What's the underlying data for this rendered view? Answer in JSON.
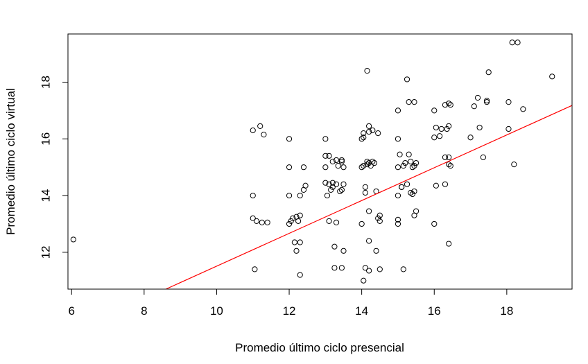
{
  "chart_data": {
    "type": "scatter",
    "title": "",
    "xlabel": "Promedio último ciclo presencial",
    "ylabel": "Promedio último ciclo virtual",
    "xlim": [
      5.9,
      19.8
    ],
    "ylim": [
      10.7,
      19.7
    ],
    "xticks": [
      6,
      8,
      10,
      12,
      14,
      16,
      18
    ],
    "xtick_labels": [
      "6",
      "8",
      "10",
      "12",
      "14",
      "16",
      "18"
    ],
    "yticks": [
      12,
      14,
      16,
      18
    ],
    "ytick_labels": [
      "12",
      "14",
      "16",
      "18"
    ],
    "grid": false,
    "point_color": "#000000",
    "line_color": "#ff0000",
    "regression_line": {
      "x": [
        8.6,
        19.8
      ],
      "y": [
        10.7,
        17.18
      ]
    },
    "points": [
      [
        6.05,
        12.45
      ],
      [
        11.0,
        16.3
      ],
      [
        11.0,
        14.0
      ],
      [
        11.0,
        13.2
      ],
      [
        11.05,
        11.4
      ],
      [
        11.1,
        13.1
      ],
      [
        11.2,
        16.45
      ],
      [
        11.25,
        13.05
      ],
      [
        11.3,
        16.15
      ],
      [
        11.4,
        13.05
      ],
      [
        12.0,
        16.0
      ],
      [
        12.0,
        15.0
      ],
      [
        12.0,
        14.0
      ],
      [
        12.0,
        13.0
      ],
      [
        12.05,
        13.1
      ],
      [
        12.1,
        13.2
      ],
      [
        12.15,
        12.35
      ],
      [
        12.2,
        13.25
      ],
      [
        12.2,
        12.05
      ],
      [
        12.25,
        13.1
      ],
      [
        12.3,
        14.0
      ],
      [
        12.3,
        13.3
      ],
      [
        12.3,
        12.35
      ],
      [
        12.3,
        11.2
      ],
      [
        12.4,
        15.0
      ],
      [
        12.4,
        14.2
      ],
      [
        12.45,
        14.35
      ],
      [
        13.0,
        16.0
      ],
      [
        13.0,
        15.4
      ],
      [
        13.0,
        15.0
      ],
      [
        13.0,
        14.45
      ],
      [
        13.05,
        14.0
      ],
      [
        13.1,
        15.4
      ],
      [
        13.1,
        14.4
      ],
      [
        13.1,
        13.1
      ],
      [
        13.15,
        14.2
      ],
      [
        13.2,
        15.2
      ],
      [
        13.2,
        14.45
      ],
      [
        13.2,
        14.3
      ],
      [
        13.25,
        12.2
      ],
      [
        13.25,
        11.45
      ],
      [
        13.3,
        15.25
      ],
      [
        13.3,
        14.4
      ],
      [
        13.3,
        13.05
      ],
      [
        13.35,
        15.05
      ],
      [
        13.4,
        14.15
      ],
      [
        13.45,
        15.25
      ],
      [
        13.45,
        15.2
      ],
      [
        13.45,
        14.2
      ],
      [
        13.45,
        11.45
      ],
      [
        13.5,
        15.0
      ],
      [
        13.5,
        14.4
      ],
      [
        13.5,
        12.05
      ],
      [
        14.0,
        16.0
      ],
      [
        14.0,
        15.0
      ],
      [
        14.0,
        13.0
      ],
      [
        14.05,
        16.2
      ],
      [
        14.05,
        16.05
      ],
      [
        14.05,
        15.05
      ],
      [
        14.05,
        11.0
      ],
      [
        14.1,
        11.45
      ],
      [
        14.1,
        14.3
      ],
      [
        14.1,
        14.1
      ],
      [
        14.15,
        18.4
      ],
      [
        14.15,
        15.2
      ],
      [
        14.15,
        15.1
      ],
      [
        14.2,
        16.45
      ],
      [
        14.2,
        16.25
      ],
      [
        14.2,
        15.15
      ],
      [
        14.2,
        13.45
      ],
      [
        14.2,
        12.4
      ],
      [
        14.2,
        11.35
      ],
      [
        14.25,
        15.05
      ],
      [
        14.3,
        16.3
      ],
      [
        14.3,
        15.2
      ],
      [
        14.35,
        15.15
      ],
      [
        14.4,
        14.15
      ],
      [
        14.4,
        12.05
      ],
      [
        14.45,
        16.2
      ],
      [
        14.45,
        13.2
      ],
      [
        14.5,
        13.3
      ],
      [
        14.5,
        13.1
      ],
      [
        14.5,
        11.4
      ],
      [
        15.0,
        17.0
      ],
      [
        15.0,
        16.0
      ],
      [
        15.0,
        15.0
      ],
      [
        15.0,
        14.0
      ],
      [
        15.0,
        13.15
      ],
      [
        15.0,
        13.0
      ],
      [
        15.05,
        15.45
      ],
      [
        15.1,
        14.3
      ],
      [
        15.1,
        14.3
      ],
      [
        15.15,
        15.05
      ],
      [
        15.15,
        11.4
      ],
      [
        15.2,
        15.15
      ],
      [
        15.25,
        14.4
      ],
      [
        15.25,
        18.1
      ],
      [
        15.3,
        17.3
      ],
      [
        15.3,
        15.45
      ],
      [
        15.35,
        15.2
      ],
      [
        15.35,
        14.1
      ],
      [
        15.4,
        15.0
      ],
      [
        15.4,
        14.05
      ],
      [
        15.45,
        17.3
      ],
      [
        15.45,
        15.05
      ],
      [
        15.45,
        13.3
      ],
      [
        15.45,
        14.15
      ],
      [
        15.5,
        15.15
      ],
      [
        15.5,
        13.45
      ],
      [
        16.0,
        17.0
      ],
      [
        16.0,
        16.05
      ],
      [
        16.0,
        13.0
      ],
      [
        16.05,
        16.4
      ],
      [
        16.05,
        14.35
      ],
      [
        16.15,
        16.1
      ],
      [
        16.2,
        16.35
      ],
      [
        16.3,
        17.2
      ],
      [
        16.3,
        15.35
      ],
      [
        16.3,
        14.4
      ],
      [
        16.35,
        16.35
      ],
      [
        16.4,
        17.25
      ],
      [
        16.4,
        16.45
      ],
      [
        16.4,
        15.35
      ],
      [
        16.4,
        15.1
      ],
      [
        16.4,
        12.3
      ],
      [
        16.45,
        17.2
      ],
      [
        16.45,
        15.05
      ],
      [
        17.0,
        16.05
      ],
      [
        17.1,
        17.15
      ],
      [
        17.2,
        17.45
      ],
      [
        17.25,
        16.4
      ],
      [
        17.35,
        15.35
      ],
      [
        17.45,
        17.35
      ],
      [
        17.45,
        17.3
      ],
      [
        17.5,
        18.35
      ],
      [
        18.05,
        17.3
      ],
      [
        18.05,
        16.35
      ],
      [
        18.15,
        19.4
      ],
      [
        18.2,
        15.1
      ],
      [
        18.3,
        19.4
      ],
      [
        18.45,
        17.05
      ],
      [
        19.25,
        18.2
      ]
    ]
  }
}
